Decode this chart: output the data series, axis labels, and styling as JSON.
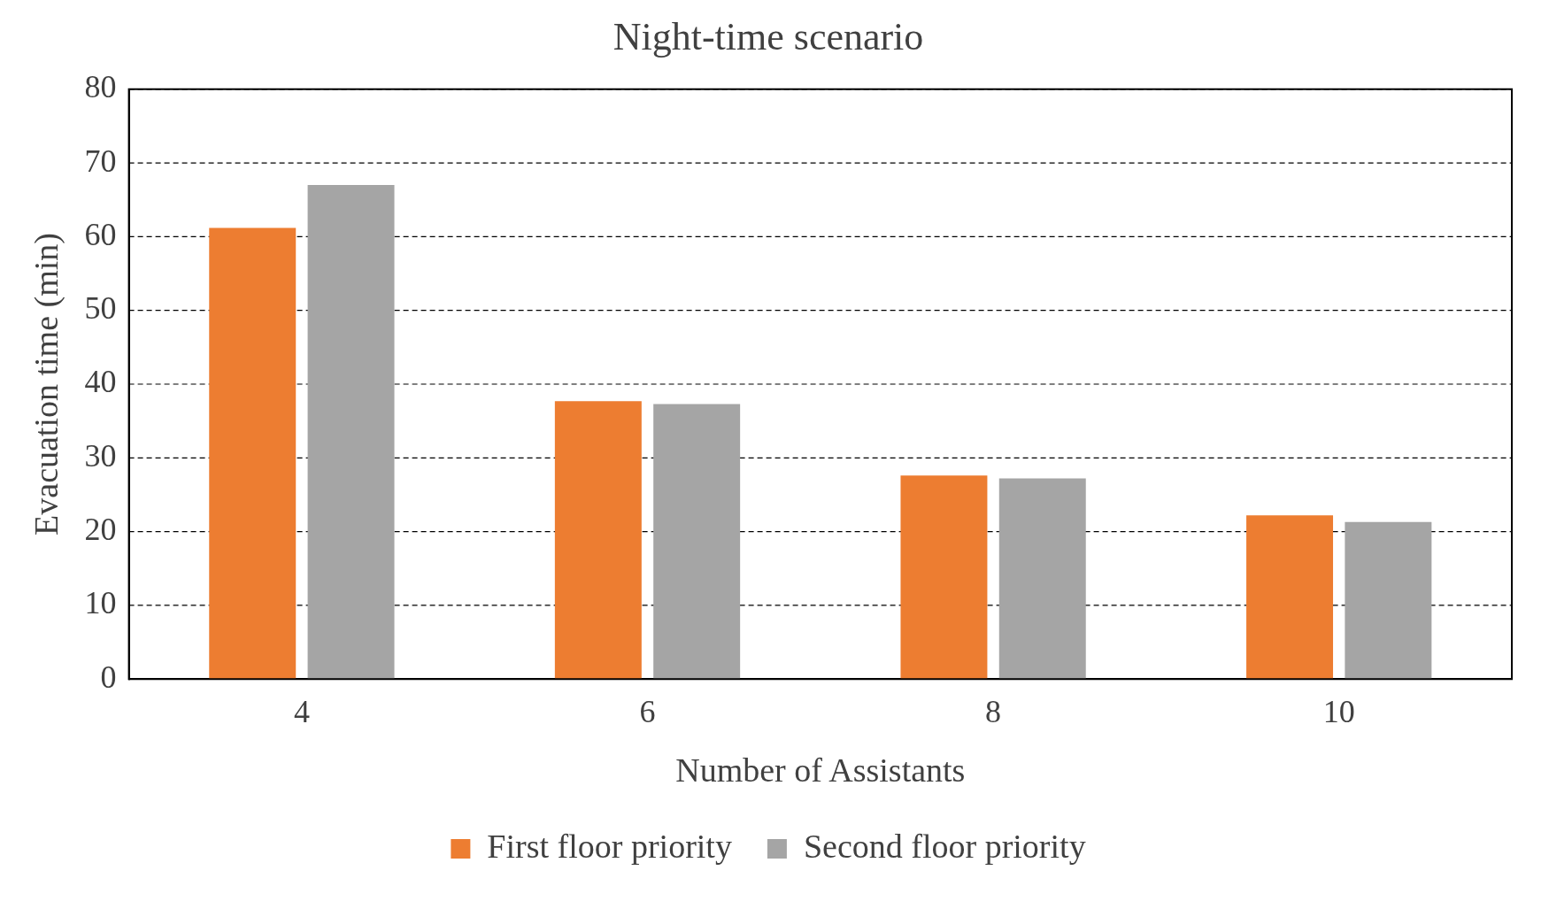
{
  "chart_data": {
    "type": "bar",
    "title": "Night-time scenario",
    "xlabel": "Number of Assistants",
    "ylabel": "Evacuation time (min)",
    "categories": [
      "4",
      "6",
      "8",
      "10"
    ],
    "series": [
      {
        "name": "First floor priority",
        "color": "#ed7d31",
        "values": [
          61.2,
          37.7,
          27.6,
          22.2
        ]
      },
      {
        "name": "Second floor priority",
        "color": "#a5a5a5",
        "values": [
          67.0,
          37.3,
          27.2,
          21.3
        ]
      }
    ],
    "ylim": [
      0,
      80
    ],
    "yticks": [
      0,
      10,
      20,
      30,
      40,
      50,
      60,
      70,
      80
    ],
    "grid": "y",
    "line_style": "dashed",
    "legend": "bottom"
  }
}
